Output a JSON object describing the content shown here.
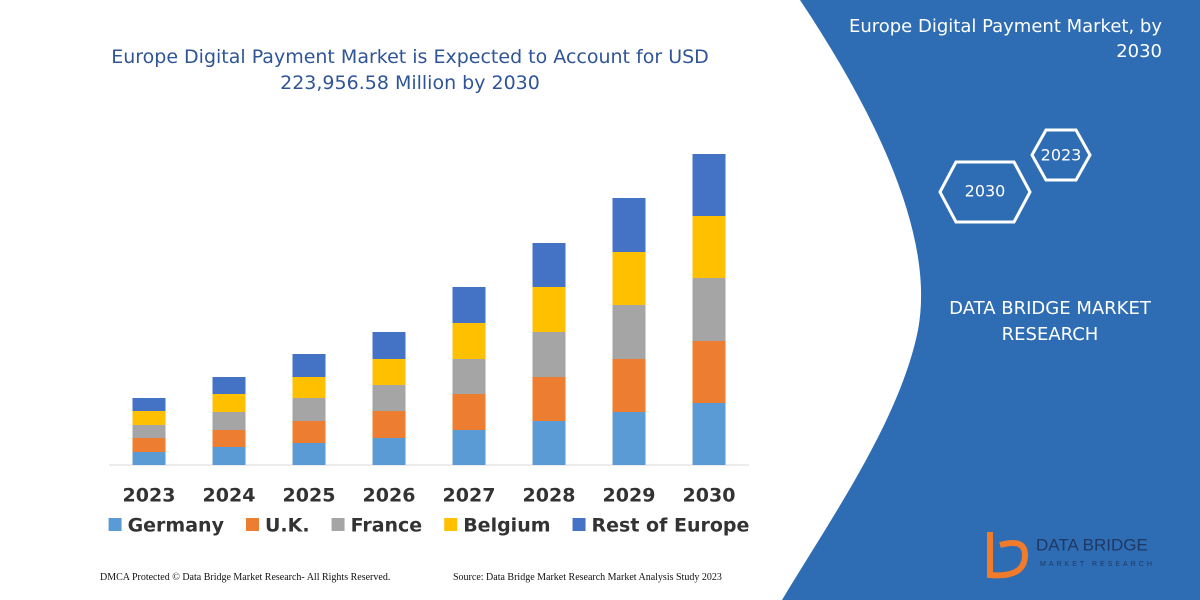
{
  "chart_data": {
    "type": "stacked_bar",
    "title": "Europe Digital Payment Market is Expected to Account for USD 223,956.58 Million by 2030",
    "categories": [
      "2023",
      "2024",
      "2025",
      "2026",
      "2027",
      "2028",
      "2029",
      "2030"
    ],
    "series": [
      {
        "name": "Germany",
        "color": "#5b9bd5",
        "values": [
          13,
          18,
          22,
          27,
          35,
          44,
          53,
          62
        ]
      },
      {
        "name": "U.K.",
        "color": "#ed7d31",
        "values": [
          14,
          17,
          22,
          27,
          36,
          44,
          53,
          62
        ]
      },
      {
        "name": "France",
        "color": "#a5a5a5",
        "values": [
          13,
          18,
          23,
          26,
          35,
          45,
          54,
          63
        ]
      },
      {
        "name": "Belgium",
        "color": "#ffc000",
        "values": [
          14,
          18,
          21,
          26,
          36,
          45,
          53,
          62
        ]
      },
      {
        "name": "Rest of Europe",
        "color": "#4472c4",
        "values": [
          13,
          17,
          23,
          27,
          36,
          44,
          54,
          62
        ]
      }
    ],
    "ylim": [
      0,
      320
    ],
    "legend": "bottom"
  },
  "side_panel": {
    "title": "Europe Digital Payment Market, by 2030",
    "hexagons": [
      "2023",
      "2030"
    ],
    "brand": "DATA BRIDGE MARKET RESEARCH",
    "logo": {
      "name": "DATA BRIDGE",
      "tagline": "MARKET RESEARCH"
    }
  },
  "footer": {
    "left": "DMCA Protected © Data Bridge Market Research-  All Rights Reserved.",
    "right": "Source: Data Bridge Market Research  Market Analysis Study 2023"
  }
}
